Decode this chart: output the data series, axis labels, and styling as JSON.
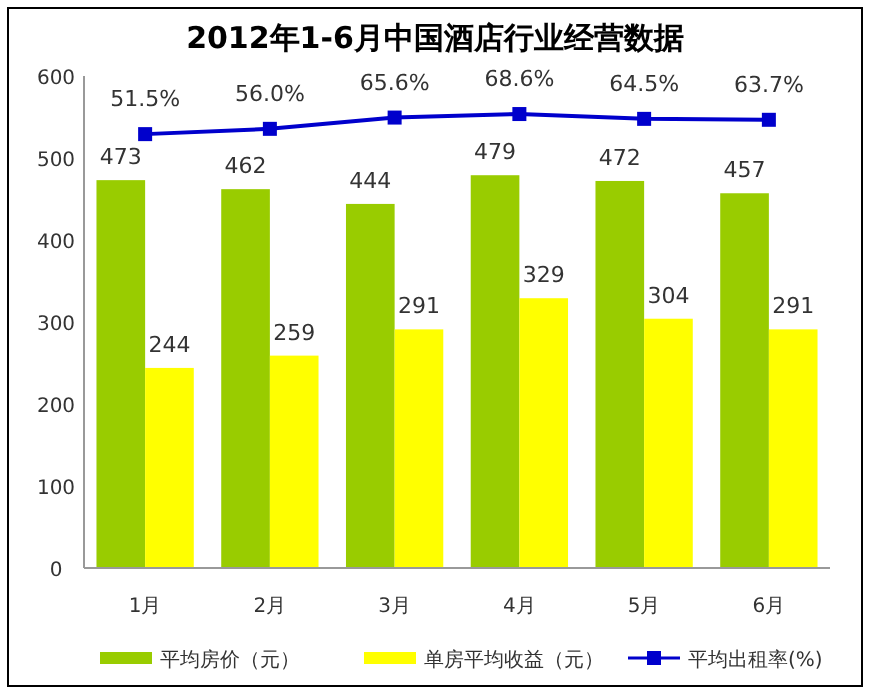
{
  "chart_data": {
    "type": "bar",
    "title": "2012年1-6月中国酒店行业经营数据",
    "categories": [
      "1月",
      "2月",
      "3月",
      "4月",
      "5月",
      "6月"
    ],
    "series": [
      {
        "name": "平均房价（元）",
        "color": "#99cc00",
        "values": [
          473,
          462,
          444,
          479,
          472,
          457
        ],
        "value_labels": [
          "473",
          "462",
          "444",
          "479",
          "472",
          "457"
        ]
      },
      {
        "name": "单房平均收益（元）",
        "color": "#ffff00",
        "values": [
          244,
          259,
          291,
          329,
          304,
          291
        ],
        "value_labels": [
          "244",
          "259",
          "291",
          "329",
          "304",
          "291"
        ]
      },
      {
        "name": "平均出租率(%)",
        "type": "line",
        "axis": "y2",
        "color": "#0000cc",
        "marker": "square",
        "values": [
          51.5,
          56.0,
          65.6,
          68.6,
          64.5,
          63.7
        ],
        "value_labels": [
          "51.5%",
          "56.0%",
          "65.6%",
          "68.6%",
          "64.5%",
          "63.7%"
        ]
      }
    ],
    "ylim": [
      0,
      600
    ],
    "yticks": [
      0,
      100,
      200,
      300,
      400,
      500,
      600
    ],
    "y2lim": [
      -318,
      101
    ],
    "legend": "bottom",
    "grid": false
  }
}
